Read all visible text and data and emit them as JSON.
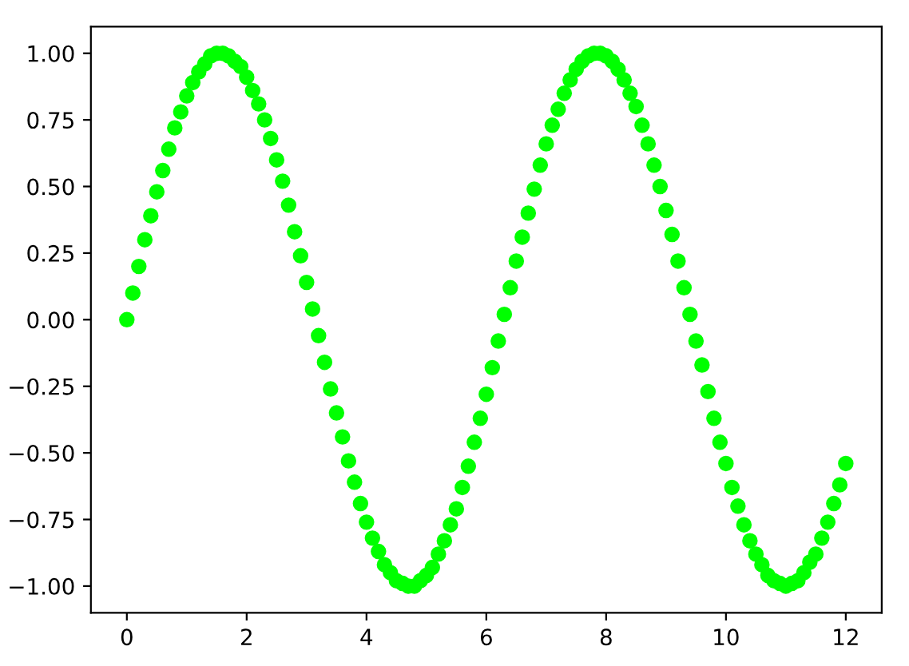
{
  "chart_data": {
    "type": "scatter",
    "marker": "circle",
    "grid": false,
    "legend": false,
    "x": [
      0.0,
      0.1,
      0.2,
      0.3,
      0.4,
      0.5,
      0.6,
      0.7,
      0.8,
      0.9,
      1.0,
      1.1,
      1.2,
      1.3,
      1.4,
      1.5,
      1.6,
      1.7,
      1.8,
      1.9,
      2.0,
      2.1,
      2.2,
      2.3,
      2.4,
      2.5,
      2.6,
      2.7,
      2.8,
      2.9,
      3.0,
      3.1,
      3.2,
      3.3,
      3.4,
      3.5,
      3.6,
      3.7,
      3.8,
      3.9,
      4.0,
      4.1,
      4.2,
      4.3,
      4.4,
      4.5,
      4.6,
      4.7,
      4.8,
      4.9,
      5.0,
      5.1,
      5.2,
      5.3,
      5.4,
      5.5,
      5.6,
      5.7,
      5.8,
      5.9,
      6.0,
      6.1,
      6.2,
      6.3,
      6.4,
      6.5,
      6.6,
      6.7,
      6.8,
      6.9,
      7.0,
      7.1,
      7.2,
      7.3,
      7.4,
      7.5,
      7.6,
      7.7,
      7.8,
      7.9,
      8.0,
      8.1,
      8.2,
      8.3,
      8.4,
      8.5,
      8.6,
      8.7,
      8.8,
      8.9,
      9.0,
      9.1,
      9.2,
      9.3,
      9.4,
      9.5,
      9.6,
      9.7,
      9.8,
      9.9,
      10.0,
      10.1,
      10.2,
      10.3,
      10.4,
      10.5,
      10.6,
      10.7,
      10.8,
      10.9,
      11.0,
      11.1,
      11.2,
      11.3,
      11.4,
      11.5,
      11.6,
      11.7,
      11.8,
      11.9,
      12.0
    ],
    "series": [
      {
        "color": "#00ff00",
        "values": [
          0.0,
          0.1,
          0.2,
          0.3,
          0.39,
          0.48,
          0.56,
          0.64,
          0.72,
          0.78,
          0.84,
          0.89,
          0.93,
          0.96,
          0.99,
          1.0,
          1.0,
          0.99,
          0.97,
          0.95,
          0.91,
          0.86,
          0.81,
          0.75,
          0.68,
          0.6,
          0.52,
          0.43,
          0.33,
          0.24,
          0.14,
          0.04,
          -0.06,
          -0.16,
          -0.26,
          -0.35,
          -0.44,
          -0.53,
          -0.61,
          -0.69,
          -0.76,
          -0.82,
          -0.87,
          -0.92,
          -0.95,
          -0.98,
          -0.99,
          -1.0,
          -1.0,
          -0.98,
          -0.96,
          -0.93,
          -0.88,
          -0.83,
          -0.77,
          -0.71,
          -0.63,
          -0.55,
          -0.46,
          -0.37,
          -0.28,
          -0.18,
          -0.08,
          0.02,
          0.12,
          0.22,
          0.31,
          0.4,
          0.49,
          0.58,
          0.66,
          0.73,
          0.79,
          0.85,
          0.9,
          0.94,
          0.97,
          0.99,
          1.0,
          1.0,
          0.99,
          0.97,
          0.94,
          0.9,
          0.85,
          0.8,
          0.73,
          0.66,
          0.58,
          0.5,
          0.41,
          0.32,
          0.22,
          0.12,
          0.02,
          -0.08,
          -0.17,
          -0.27,
          -0.37,
          -0.46,
          -0.54,
          -0.63,
          -0.7,
          -0.77,
          -0.83,
          -0.88,
          -0.92,
          -0.96,
          -0.98,
          -0.99,
          -1.0,
          -0.99,
          -0.98,
          -0.95,
          -0.91,
          -0.88,
          -0.82,
          -0.76,
          -0.69,
          -0.62,
          -0.54
        ]
      }
    ],
    "xlim": [
      -0.6,
      12.6
    ],
    "ylim": [
      -1.1,
      1.1
    ],
    "xticks": [
      0,
      2,
      4,
      6,
      8,
      10,
      12
    ],
    "yticks": [
      {
        "value": -1,
        "label": "−1.00"
      },
      {
        "value": -0.75,
        "label": "−0.75"
      },
      {
        "value": -0.5,
        "label": "−0.50"
      },
      {
        "value": -0.25,
        "label": "−0.25"
      },
      {
        "value": 0,
        "label": "0.00"
      },
      {
        "value": 0.25,
        "label": "0.25"
      },
      {
        "value": 0.5,
        "label": "0.50"
      },
      {
        "value": 0.75,
        "label": "0.75"
      },
      {
        "value": 1,
        "label": "1.00"
      }
    ]
  }
}
